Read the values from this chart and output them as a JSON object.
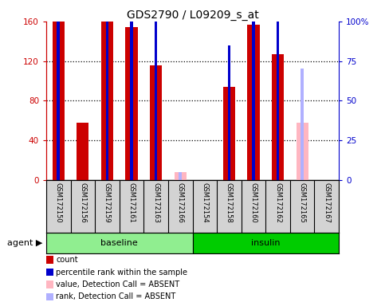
{
  "title": "GDS2790 / L09209_s_at",
  "samples": [
    "GSM172150",
    "GSM172156",
    "GSM172159",
    "GSM172161",
    "GSM172163",
    "GSM172166",
    "GSM172154",
    "GSM172158",
    "GSM172160",
    "GSM172162",
    "GSM172165",
    "GSM172167"
  ],
  "count_values": [
    160,
    58,
    160,
    154,
    116,
    null,
    null,
    94,
    157,
    127,
    null,
    null
  ],
  "count_absent": [
    null,
    null,
    null,
    null,
    null,
    8,
    null,
    null,
    null,
    null,
    58,
    null
  ],
  "percentile_values": [
    115,
    null,
    100,
    112,
    100,
    null,
    null,
    85,
    112,
    112,
    null,
    null
  ],
  "percentile_absent": [
    null,
    null,
    null,
    null,
    null,
    5,
    null,
    null,
    null,
    null,
    70,
    null
  ],
  "count_color": "#cc0000",
  "count_absent_color": "#ffb6c1",
  "percentile_color": "#0000cc",
  "percentile_absent_color": "#b0b0ff",
  "ylim_left": [
    0,
    160
  ],
  "ylim_right": [
    0,
    100
  ],
  "yticks_left": [
    0,
    40,
    80,
    120,
    160
  ],
  "ytick_labels_left": [
    "0",
    "40",
    "80",
    "120",
    "160"
  ],
  "yticks_right": [
    0,
    25,
    50,
    75,
    100
  ],
  "ytick_labels_right": [
    "0",
    "25",
    "50",
    "75",
    "100%"
  ],
  "baseline_label": "baseline",
  "insulin_label": "insulin",
  "agent_label": "agent",
  "legend_items": [
    {
      "label": "count",
      "color": "#cc0000"
    },
    {
      "label": "percentile rank within the sample",
      "color": "#0000cc"
    },
    {
      "label": "value, Detection Call = ABSENT",
      "color": "#ffb6c1"
    },
    {
      "label": "rank, Detection Call = ABSENT",
      "color": "#b0b0ff"
    }
  ],
  "bar_width": 0.5,
  "pct_bar_width": 0.12,
  "sample_label_bg": "#d3d3d3",
  "group_bg_baseline": "#90ee90",
  "group_bg_insulin": "#00cc00",
  "n_baseline": 6,
  "n_insulin": 6,
  "dotted_lines": [
    40,
    80,
    120
  ]
}
